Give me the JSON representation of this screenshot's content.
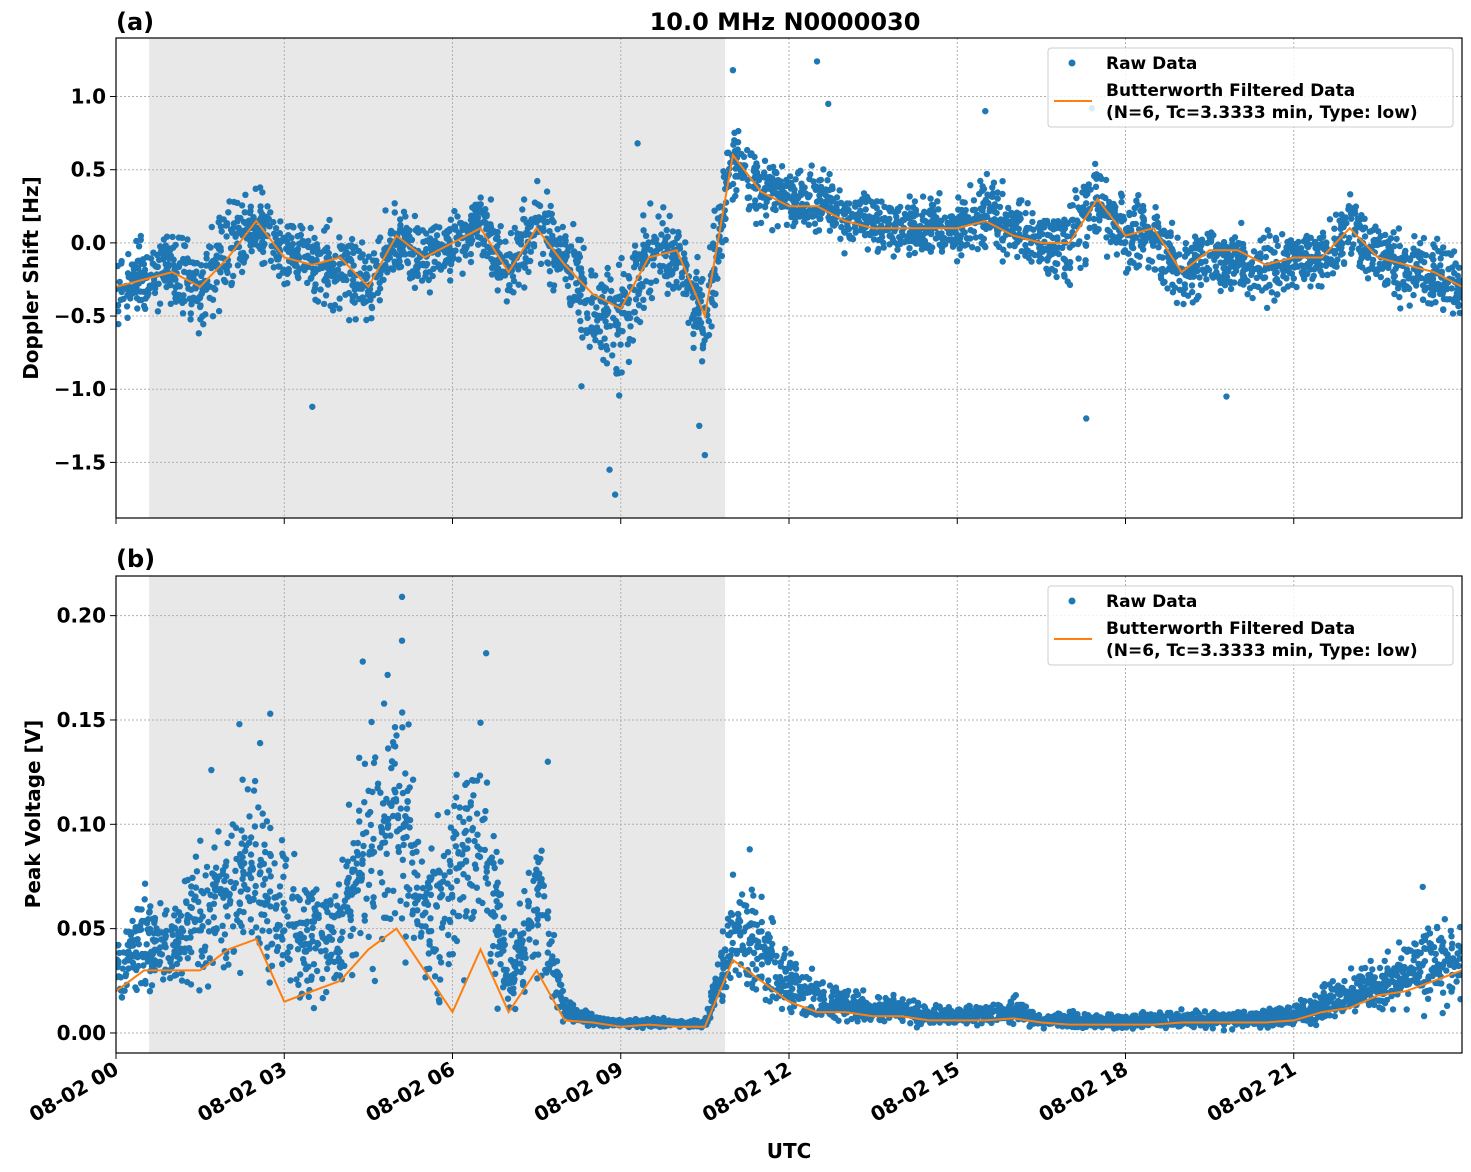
{
  "chart_data": [
    {
      "type": "scatter+line",
      "panel_label": "(a)",
      "title": "10.0 MHz N0000030",
      "xlabel": "",
      "ylabel": "Doppler Shift [Hz]",
      "ylim": [
        -1.88,
        1.4
      ],
      "yticks": [
        -1.5,
        -1.0,
        -0.5,
        0.0,
        0.5,
        1.0
      ],
      "ytick_labels": [
        "−1.5",
        "−1.0",
        "−0.5",
        "0.0",
        "0.5",
        "1.0"
      ],
      "grid": true,
      "legend_position": "top-right",
      "shaded_interval_hours": [
        0.59,
        10.86
      ],
      "x_hours": [
        0,
        0.5,
        1,
        1.5,
        2,
        2.5,
        3,
        3.5,
        4,
        4.5,
        5,
        5.5,
        6,
        6.5,
        7,
        7.5,
        8,
        8.5,
        9,
        9.5,
        10,
        10.5,
        11,
        11.5,
        12,
        12.5,
        13,
        13.5,
        14,
        14.5,
        15,
        15.5,
        16,
        16.5,
        17,
        17.5,
        18,
        18.5,
        19,
        19.5,
        20,
        20.5,
        21,
        21.5,
        22,
        22.5,
        23,
        23.5,
        24
      ],
      "series": [
        {
          "name": "Raw Data",
          "kind": "scatter",
          "color": "#1f77b4",
          "low": [
            -0.6,
            -0.55,
            -0.5,
            -0.7,
            -0.45,
            -0.2,
            -0.4,
            -0.5,
            -0.6,
            -0.7,
            -0.3,
            -0.4,
            -0.3,
            -0.2,
            -0.55,
            -0.3,
            -0.55,
            -0.9,
            -1.1,
            -0.55,
            -0.45,
            -1.1,
            0.2,
            0.05,
            0.0,
            -0.05,
            -0.1,
            -0.15,
            -0.15,
            -0.15,
            -0.2,
            -0.15,
            -0.2,
            -0.3,
            -0.4,
            -0.1,
            -0.3,
            -0.3,
            -0.55,
            -0.4,
            -0.4,
            -0.55,
            -0.45,
            -0.4,
            -0.2,
            -0.4,
            -0.5,
            -0.55,
            -0.6
          ],
          "high": [
            0.0,
            0.1,
            0.15,
            0.05,
            0.35,
            0.45,
            0.25,
            0.25,
            0.25,
            0.1,
            0.35,
            0.2,
            0.3,
            0.45,
            0.15,
            0.55,
            0.25,
            0.05,
            0.0,
            0.35,
            0.35,
            0.0,
            1.0,
            0.7,
            0.6,
            0.65,
            0.45,
            0.4,
            0.35,
            0.4,
            0.4,
            0.55,
            0.4,
            0.3,
            0.35,
            0.75,
            0.4,
            0.4,
            0.1,
            0.25,
            0.2,
            0.15,
            0.15,
            0.2,
            0.45,
            0.25,
            0.15,
            0.1,
            0.0
          ],
          "outliers": [
            [
              8.9,
              -1.72
            ],
            [
              8.8,
              -1.55
            ],
            [
              3.5,
              -1.12
            ],
            [
              10.5,
              -1.45
            ],
            [
              17.3,
              -1.2
            ],
            [
              19.8,
              -1.05
            ],
            [
              11.0,
              1.18
            ],
            [
              12.5,
              1.24
            ],
            [
              9.3,
              0.68
            ],
            [
              15.5,
              0.9
            ],
            [
              17.4,
              0.92
            ],
            [
              12.7,
              0.95
            ],
            [
              8.3,
              -0.98
            ],
            [
              10.4,
              -1.25
            ]
          ]
        },
        {
          "name": "Butterworth Filtered Data\n(N=6, Tc=3.3333 min, Type: low)",
          "kind": "line",
          "color": "#ff7f0e",
          "values": [
            -0.3,
            -0.25,
            -0.2,
            -0.3,
            -0.1,
            0.15,
            -0.1,
            -0.15,
            -0.1,
            -0.3,
            0.05,
            -0.1,
            0.0,
            0.1,
            -0.2,
            0.1,
            -0.15,
            -0.35,
            -0.45,
            -0.1,
            -0.05,
            -0.5,
            0.6,
            0.35,
            0.25,
            0.25,
            0.15,
            0.1,
            0.1,
            0.1,
            0.1,
            0.15,
            0.05,
            0.0,
            0.0,
            0.3,
            0.05,
            0.1,
            -0.2,
            -0.05,
            -0.05,
            -0.15,
            -0.1,
            -0.1,
            0.1,
            -0.1,
            -0.15,
            -0.2,
            -0.3
          ]
        }
      ],
      "legend": {
        "raw": "Raw Data",
        "filtered_line1": "Butterworth Filtered Data",
        "filtered_line2": "(N=6, Tc=3.3333 min, Type: low)"
      }
    },
    {
      "type": "scatter+line",
      "panel_label": "(b)",
      "xlabel": "UTC",
      "ylabel": "Peak Voltage [V]",
      "ylim": [
        -0.0096,
        0.219
      ],
      "yticks": [
        0.0,
        0.05,
        0.1,
        0.15,
        0.2
      ],
      "ytick_labels": [
        "0.00",
        "0.05",
        "0.10",
        "0.15",
        "0.20"
      ],
      "xlim_hours": [
        0,
        24
      ],
      "xticks_hours": [
        0,
        3,
        6,
        9,
        12,
        15,
        18,
        21
      ],
      "xtick_labels": [
        "08-02 00",
        "08-02 03",
        "08-02 06",
        "08-02 09",
        "08-02 12",
        "08-02 15",
        "08-02 18",
        "08-02 21"
      ],
      "grid": true,
      "legend_position": "top-right",
      "shaded_interval_hours": [
        0.59,
        10.86
      ],
      "x_hours": [
        0,
        0.5,
        1,
        1.5,
        2,
        2.5,
        3,
        3.5,
        4,
        4.5,
        5,
        5.5,
        6,
        6.5,
        7,
        7.5,
        8,
        8.5,
        9,
        9.5,
        10,
        10.5,
        11,
        11.5,
        12,
        12.5,
        13,
        13.5,
        14,
        14.5,
        15,
        15.5,
        16,
        16.5,
        17,
        17.5,
        18,
        18.5,
        19,
        19.5,
        20,
        20.5,
        21,
        21.5,
        22,
        22.5,
        23,
        23.5,
        24
      ],
      "series": [
        {
          "name": "Raw Data",
          "kind": "scatter",
          "color": "#1f77b4",
          "low": [
            0.008,
            0.01,
            0.01,
            0.01,
            0.012,
            0.012,
            0.004,
            0.006,
            0.008,
            0.012,
            0.014,
            0.01,
            0.004,
            0.01,
            0.004,
            0.008,
            0.003,
            0.002,
            0.002,
            0.002,
            0.002,
            0.002,
            0.01,
            0.008,
            0.004,
            0.003,
            0.003,
            0.002,
            0.002,
            0.002,
            0.002,
            0.002,
            0.002,
            0.001,
            0.001,
            0.001,
            0.001,
            0.001,
            0.001,
            0.001,
            0.001,
            0.001,
            0.002,
            0.003,
            0.004,
            0.005,
            0.006,
            0.007,
            0.008
          ],
          "high": [
            0.05,
            0.08,
            0.07,
            0.1,
            0.12,
            0.15,
            0.1,
            0.08,
            0.09,
            0.17,
            0.2,
            0.1,
            0.15,
            0.18,
            0.05,
            0.12,
            0.02,
            0.01,
            0.007,
            0.008,
            0.007,
            0.006,
            0.085,
            0.07,
            0.05,
            0.03,
            0.025,
            0.02,
            0.02,
            0.015,
            0.015,
            0.015,
            0.02,
            0.01,
            0.012,
            0.01,
            0.01,
            0.012,
            0.012,
            0.012,
            0.012,
            0.013,
            0.015,
            0.025,
            0.035,
            0.04,
            0.05,
            0.065,
            0.06
          ],
          "outliers": [
            [
              5.1,
              0.209
            ],
            [
              5.1,
              0.188
            ],
            [
              4.4,
              0.178
            ],
            [
              6.6,
              0.182
            ],
            [
              2.75,
              0.153
            ],
            [
              2.2,
              0.148
            ],
            [
              7.7,
              0.13
            ],
            [
              1.7,
              0.126
            ],
            [
              11.3,
              0.088
            ],
            [
              23.3,
              0.07
            ]
          ]
        },
        {
          "name": "Butterworth Filtered Data\n(N=6, Tc=3.3333 min, Type: low)",
          "kind": "line",
          "color": "#ff7f0e",
          "values": [
            0.02,
            0.03,
            0.03,
            0.03,
            0.04,
            0.045,
            0.015,
            0.02,
            0.025,
            0.04,
            0.05,
            0.03,
            0.01,
            0.04,
            0.01,
            0.03,
            0.006,
            0.005,
            0.003,
            0.004,
            0.003,
            0.003,
            0.035,
            0.025,
            0.015,
            0.01,
            0.01,
            0.008,
            0.008,
            0.006,
            0.006,
            0.006,
            0.007,
            0.005,
            0.004,
            0.004,
            0.004,
            0.004,
            0.005,
            0.005,
            0.005,
            0.005,
            0.006,
            0.01,
            0.012,
            0.018,
            0.02,
            0.025,
            0.03
          ]
        }
      ],
      "legend": {
        "raw": "Raw Data",
        "filtered_line1": "Butterworth Filtered Data",
        "filtered_line2": "(N=6, Tc=3.3333 min, Type: low)"
      }
    }
  ]
}
